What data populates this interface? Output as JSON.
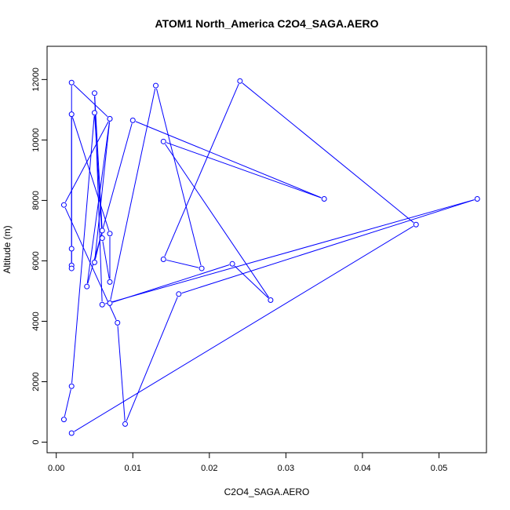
{
  "chart_data": {
    "type": "line",
    "title": "ATOM1 North_America C2O4_SAGA.AERO",
    "xlabel": "C2O4_SAGA.AERO",
    "ylabel": "Altitude (m)",
    "xlim": [
      -0.0012,
      0.0562
    ],
    "ylim": [
      -350,
      13100
    ],
    "x_ticks": [
      0.0,
      0.01,
      0.02,
      0.03,
      0.04,
      0.05
    ],
    "x_tick_labels": [
      "0.00",
      "0.01",
      "0.02",
      "0.03",
      "0.04",
      "0.05"
    ],
    "y_ticks": [
      0,
      2000,
      4000,
      6000,
      8000,
      10000,
      12000
    ],
    "y_tick_labels": [
      "0",
      "2000",
      "4000",
      "6000",
      "8000",
      "10000",
      "12000"
    ],
    "grid": false,
    "series": [
      {
        "color": "#0000ff",
        "points": [
          {
            "x": 0.001,
            "y": 750
          },
          {
            "x": 0.002,
            "y": 1850
          },
          {
            "x": 0.005,
            "y": 10900
          },
          {
            "x": 0.006,
            "y": 6750
          },
          {
            "x": 0.007,
            "y": 5300
          },
          {
            "x": 0.007,
            "y": 6900
          },
          {
            "x": 0.002,
            "y": 10850
          },
          {
            "x": 0.002,
            "y": 5850
          },
          {
            "x": 0.002,
            "y": 5750
          },
          {
            "x": 0.002,
            "y": 6400
          },
          {
            "x": 0.002,
            "y": 11900
          },
          {
            "x": 0.007,
            "y": 10700
          },
          {
            "x": 0.005,
            "y": 5950
          },
          {
            "x": 0.006,
            "y": 7000
          },
          {
            "x": 0.005,
            "y": 11550
          },
          {
            "x": 0.006,
            "y": 4550
          },
          {
            "x": 0.055,
            "y": 8050
          },
          {
            "x": 0.016,
            "y": 4900
          },
          {
            "x": 0.009,
            "y": 600
          },
          {
            "x": 0.008,
            "y": 3950
          },
          {
            "x": 0.001,
            "y": 7850
          },
          {
            "x": 0.007,
            "y": 10700
          },
          {
            "x": 0.004,
            "y": 5150
          },
          {
            "x": 0.01,
            "y": 10650
          },
          {
            "x": 0.035,
            "y": 8050
          },
          {
            "x": 0.014,
            "y": 9950
          },
          {
            "x": 0.028,
            "y": 4700
          },
          {
            "x": 0.023,
            "y": 5900
          },
          {
            "x": 0.007,
            "y": 4600
          },
          {
            "x": 0.013,
            "y": 11800
          },
          {
            "x": 0.019,
            "y": 5750
          },
          {
            "x": 0.014,
            "y": 6050
          },
          {
            "x": 0.024,
            "y": 11950
          },
          {
            "x": 0.047,
            "y": 7200
          },
          {
            "x": 0.002,
            "y": 300
          }
        ]
      }
    ]
  }
}
